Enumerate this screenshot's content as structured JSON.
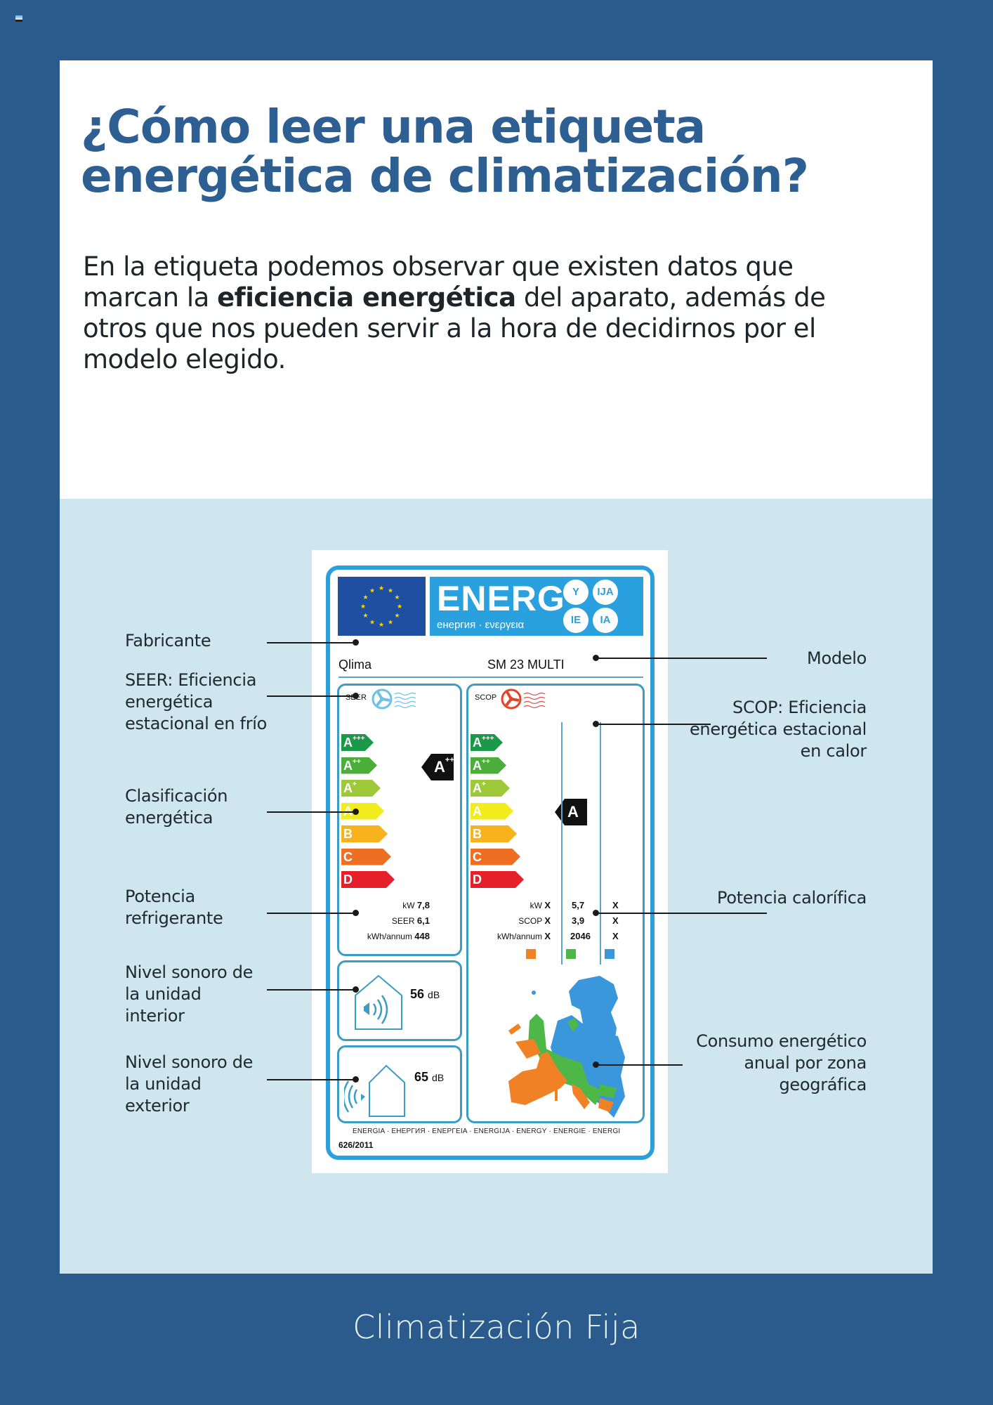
{
  "header": {
    "title_line1": "¿Cómo leer una etiqueta",
    "title_line2": "energética de climatización?",
    "intro_before_bold": "En la etiqueta podemos observar que existen datos que marcan la ",
    "intro_bold": "eficiencia energética",
    "intro_after_bold": " del aparato, además de otros que nos pueden servir a la hora de decidirnos por el modelo elegido."
  },
  "label": {
    "banner_text": "ENERG",
    "banner_subtext": "енергия · ενεργεια",
    "lang_circles": [
      "Y",
      "IJA",
      "IE",
      "IA"
    ],
    "manufacturer": "Qlima",
    "model": "SM 23 MULTI",
    "seer_label": "SEER",
    "scop_label": "SCOP",
    "classes": [
      {
        "letter": "A",
        "sup": "+++",
        "color": "#1a9a48"
      },
      {
        "letter": "A",
        "sup": "++",
        "color": "#4bae3a"
      },
      {
        "letter": "A",
        "sup": "+",
        "color": "#9dc93b"
      },
      {
        "letter": "A",
        "sup": "",
        "color": "#f2ec1c"
      },
      {
        "letter": "B",
        "sup": "",
        "color": "#f7b21c"
      },
      {
        "letter": "C",
        "sup": "",
        "color": "#ee6f22"
      },
      {
        "letter": "D",
        "sup": "",
        "color": "#e5202a"
      }
    ],
    "seer_rating": {
      "letter": "A",
      "sup": "++"
    },
    "scop_rating": {
      "letter": "A",
      "sup": ""
    },
    "cooling": {
      "kw_label": "kW",
      "kw_value": "7,8",
      "seer_row_label": "SEER",
      "seer_value": "6,1",
      "annum_label": "kWh/annum",
      "annum_value": "448"
    },
    "heating": {
      "kw_label": "kW",
      "scop_row_label": "SCOP",
      "annum_label": "kWh/annum",
      "zones": [
        {
          "kw": "X",
          "scop": "X",
          "annum": "X",
          "color": "#f08124"
        },
        {
          "kw": "5,7",
          "scop": "3,9",
          "annum": "2046",
          "color": "#4db848"
        },
        {
          "kw": "X",
          "scop": "X",
          "annum": "X",
          "color": "#3b97db"
        }
      ]
    },
    "indoor_noise": {
      "value": "56",
      "unit": "dB"
    },
    "outdoor_noise": {
      "value": "65",
      "unit": "dB"
    },
    "footer_languages": "ENERGIA · ЕНЕРГИЯ · ΕΝΕΡΓΕΙΑ · ENERGIJA · ENERGY · ENERGIE · ENERGI",
    "regulation": "626/2011"
  },
  "callouts": {
    "left": [
      "Fabricante",
      "SEER: Eficiencia energética estacional en frío",
      "Clasificación energética",
      "Potencia refrigerante",
      "Nivel sonoro de la unidad interior",
      "Nivel sonoro de la unidad exterior"
    ],
    "right": [
      "Modelo",
      "SCOP: Eficiencia energética estacional en calor",
      "Potencia calorífica",
      "Consumo energético anual por zona geográfica"
    ]
  },
  "footer": {
    "section_title": "Climatización Fija"
  },
  "colors": {
    "page_bg": "#2b5b8c",
    "title": "#2d5f92",
    "panel_light": "#cfe6ee",
    "label_blue": "#2aa0de"
  }
}
